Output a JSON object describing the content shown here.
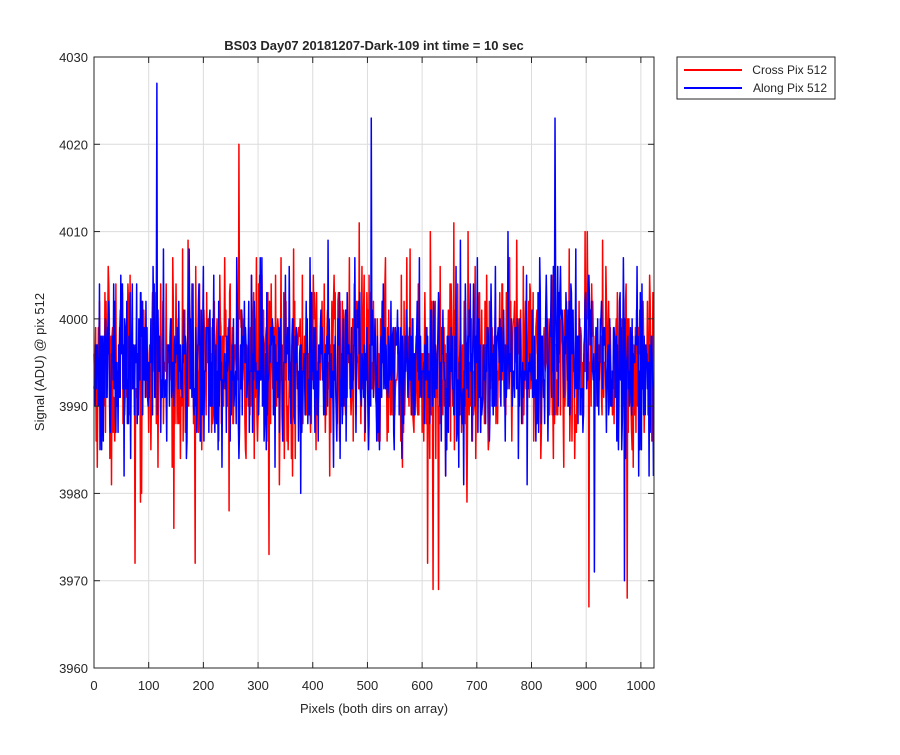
{
  "chart_data": {
    "type": "line",
    "title": "BS03 Day07 20181207-Dark-109 int time = 10 sec",
    "xlabel": "Pixels (both dirs on array)",
    "ylabel": "Signal (ADU) @ pix 512",
    "xlim": [
      0,
      1024
    ],
    "ylim": [
      3960,
      4030
    ],
    "xticks": [
      0,
      100,
      200,
      300,
      400,
      500,
      600,
      700,
      800,
      900,
      1000
    ],
    "yticks": [
      3960,
      3970,
      3980,
      3990,
      4000,
      4010,
      4020,
      4030
    ],
    "grid": true,
    "legend_position": "outside-top-right",
    "series": [
      {
        "name": "Cross Pix 512",
        "color": "#ff0000",
        "n_points": 1024,
        "mean": 3995,
        "std": 5.5,
        "min": 3967,
        "max": 4020,
        "notable_points": [
          {
            "x": 75,
            "y": 3972
          },
          {
            "x": 185,
            "y": 3972
          },
          {
            "x": 265,
            "y": 4020
          },
          {
            "x": 320,
            "y": 3973
          },
          {
            "x": 610,
            "y": 3972
          },
          {
            "x": 620,
            "y": 3969
          },
          {
            "x": 630,
            "y": 3969
          },
          {
            "x": 905,
            "y": 3967
          },
          {
            "x": 975,
            "y": 3968
          }
        ]
      },
      {
        "name": "Along Pix 512",
        "color": "#0000ff",
        "n_points": 1024,
        "mean": 3995,
        "std": 5.0,
        "min": 3970,
        "max": 4027,
        "notable_points": [
          {
            "x": 115,
            "y": 4027
          },
          {
            "x": 507,
            "y": 4023
          },
          {
            "x": 843,
            "y": 4023
          },
          {
            "x": 915,
            "y": 3971
          },
          {
            "x": 970,
            "y": 3970
          }
        ]
      }
    ]
  }
}
